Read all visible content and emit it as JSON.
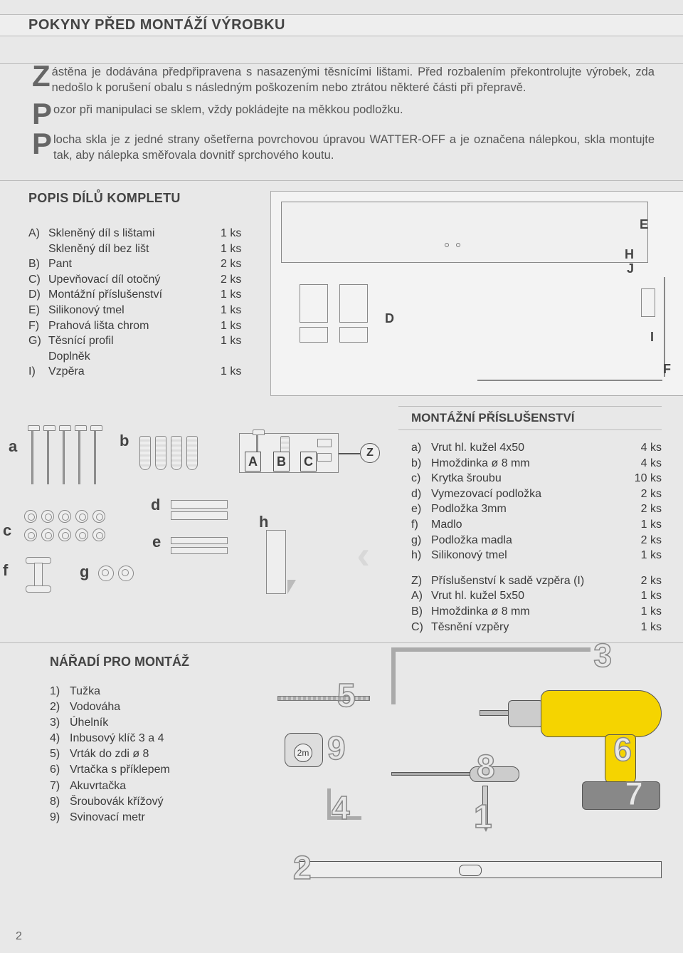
{
  "page_number": "2",
  "title_main": "POKYNY PŘED MONTÁŽÍ VÝROBKU",
  "intro": {
    "p1_drop": "Z",
    "p1_rest": "ástěna je dodávána předpřipravena s nasazenými těsnícími lištami. Před rozbalením překontrolujte výrobek, zda nedošlo k  porušení obalu s následným poškozením nebo ztrátou některé části při přepravě.",
    "p2_drop": "P",
    "p2_rest": "ozor při manipulaci se sklem, vždy pokládejte na měkkou podložku.",
    "p3_drop": "P",
    "p3_rest": "locha skla je z jedné strany ošetřerna povrchovou úpravou WATTER-OFF a je označena nálepkou, skla montujte tak, aby nálepka směřovala dovnitř sprchového koutu."
  },
  "popis_title": "POPIS DÍLŮ KOMPLETU",
  "popis_items": [
    {
      "l": "A)",
      "n": "Skleněný díl s lištami",
      "q": "1 ks"
    },
    {
      "l": "",
      "n": "Skleněný díl bez lišt",
      "q": "1 ks"
    },
    {
      "l": "B)",
      "n": "Pant",
      "q": "2 ks"
    },
    {
      "l": "C)",
      "n": "Upevňovací díl otočný",
      "q": "2 ks"
    },
    {
      "l": "D)",
      "n": "Montážní příslušenství",
      "q": "1 ks"
    },
    {
      "l": "E)",
      "n": "Silikonový tmel",
      "q": "1 ks"
    },
    {
      "l": "F)",
      "n": "Prahová lišta chrom",
      "q": "1 ks"
    },
    {
      "l": "G)",
      "n": "Těsnící profil",
      "q": "1 ks"
    },
    {
      "l": "",
      "n": "Doplněk",
      "q": ""
    },
    {
      "l": "I)",
      "n": "Vzpěra",
      "q": "1 ks"
    }
  ],
  "diagram_letters": {
    "E": "E",
    "H": "H",
    "J": "J",
    "D": "D",
    "I": "I",
    "F": "F"
  },
  "acc_title": "MONTÁŽNÍ PŘÍSLUŠENSTVÍ",
  "acc_items": [
    {
      "l": "a)",
      "n": "Vrut hl. kužel 4x50",
      "q": "4 ks"
    },
    {
      "l": "b)",
      "n": "Hmoždinka ø 8 mm",
      "q": "4 ks"
    },
    {
      "l": "c)",
      "n": "Krytka šroubu",
      "q": "10 ks"
    },
    {
      "l": "d)",
      "n": "Vymezovací podložka",
      "q": "2 ks"
    },
    {
      "l": "e)",
      "n": "Podložka 3mm",
      "q": "2 ks"
    },
    {
      "l": "f)",
      "n": "Madlo",
      "q": "1 ks"
    },
    {
      "l": "g)",
      "n": "Podložka madla",
      "q": "2 ks"
    },
    {
      "l": "h)",
      "n": "Silikonový tmel",
      "q": "1 ks"
    }
  ],
  "acc_items2": [
    {
      "l": "Z)",
      "n": "Příslušenství k sadě vzpěra (I)",
      "q": "2 ks"
    },
    {
      "l": "A)",
      "n": "Vrut hl. kužel 5x50",
      "q": "1 ks"
    },
    {
      "l": "B)",
      "n": "Hmoždinka ø 8 mm",
      "q": "1 ks"
    },
    {
      "l": "C)",
      "n": "Těsnění vzpěry",
      "q": "1 ks"
    }
  ],
  "mini_labels": {
    "a": "a",
    "b": "b",
    "c": "c",
    "d": "d",
    "e": "e",
    "f": "f",
    "g": "g",
    "h": "h",
    "A": "A",
    "B": "B",
    "C": "C",
    "Z": "Z"
  },
  "tools_title": "NÁŘADÍ PRO MONTÁŽ",
  "tools_items": [
    {
      "l": "1)",
      "n": "Tužka"
    },
    {
      "l": "2)",
      "n": "Vodováha"
    },
    {
      "l": "3)",
      "n": "Úhelník"
    },
    {
      "l": "4)",
      "n": "Inbusový klíč 3 a 4"
    },
    {
      "l": "5)",
      "n": "Vrták do zdi ø 8"
    },
    {
      "l": "6)",
      "n": "Vrtačka s příklepem"
    },
    {
      "l": "7)",
      "n": "Akuvrtačka"
    },
    {
      "l": "8)",
      "n": "Šroubovák křížový"
    },
    {
      "l": "9)",
      "n": "Svinovací metr"
    }
  ],
  "tool_numbers": {
    "1": "1",
    "2": "2",
    "3": "3",
    "4": "4",
    "5": "5",
    "6": "6",
    "7": "7",
    "8": "8",
    "9": "9"
  }
}
